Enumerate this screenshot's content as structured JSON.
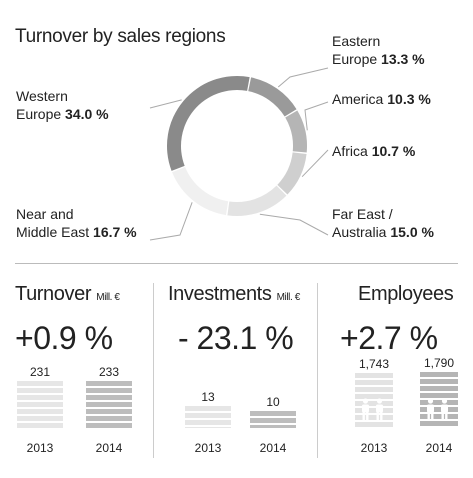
{
  "chart_data": [
    {
      "type": "pie",
      "title": "Turnover by sales regions",
      "slices": [
        {
          "label_line1": "Eastern",
          "label_line2": "Europe",
          "value": 13.3,
          "value_text": "13.3 %",
          "color": "#9a9a9a"
        },
        {
          "label_line1": "",
          "label_line2": "America",
          "value": 10.3,
          "value_text": "10.3 %",
          "color": "#b5b5b5"
        },
        {
          "label_line1": "",
          "label_line2": "Africa",
          "value": 10.7,
          "value_text": "10.7 %",
          "color": "#cfcfcf"
        },
        {
          "label_line1": "Far East /",
          "label_line2": "Australia",
          "value": 15.0,
          "value_text": "15.0 %",
          "color": "#e3e3e3"
        },
        {
          "label_line1": "Near and",
          "label_line2": "Middle East",
          "value": 16.7,
          "value_text": "16.7 %",
          "color": "#f0f0f0"
        },
        {
          "label_line1": "Western",
          "label_line2": "Europe",
          "value": 34.0,
          "value_text": "34.0 %",
          "color": "#8a8a8a"
        }
      ]
    },
    {
      "type": "bar",
      "title": "Turnover",
      "unit": "Mill. €",
      "change": "+0.9 %",
      "categories": [
        "2013",
        "2014"
      ],
      "values": [
        231,
        233
      ],
      "value_labels": [
        "231",
        "233"
      ]
    },
    {
      "type": "bar",
      "title": "Investments",
      "unit": "Mill. €",
      "change": "- 23.1 %",
      "categories": [
        "2013",
        "2014"
      ],
      "values": [
        13,
        10
      ],
      "value_labels": [
        "13",
        "10"
      ]
    },
    {
      "type": "bar",
      "title": "Employees",
      "unit": "",
      "change": "+2.7 %",
      "categories": [
        "2013",
        "2014"
      ],
      "values": [
        1743,
        1790
      ],
      "value_labels": [
        "1,743",
        "1,790"
      ]
    }
  ]
}
